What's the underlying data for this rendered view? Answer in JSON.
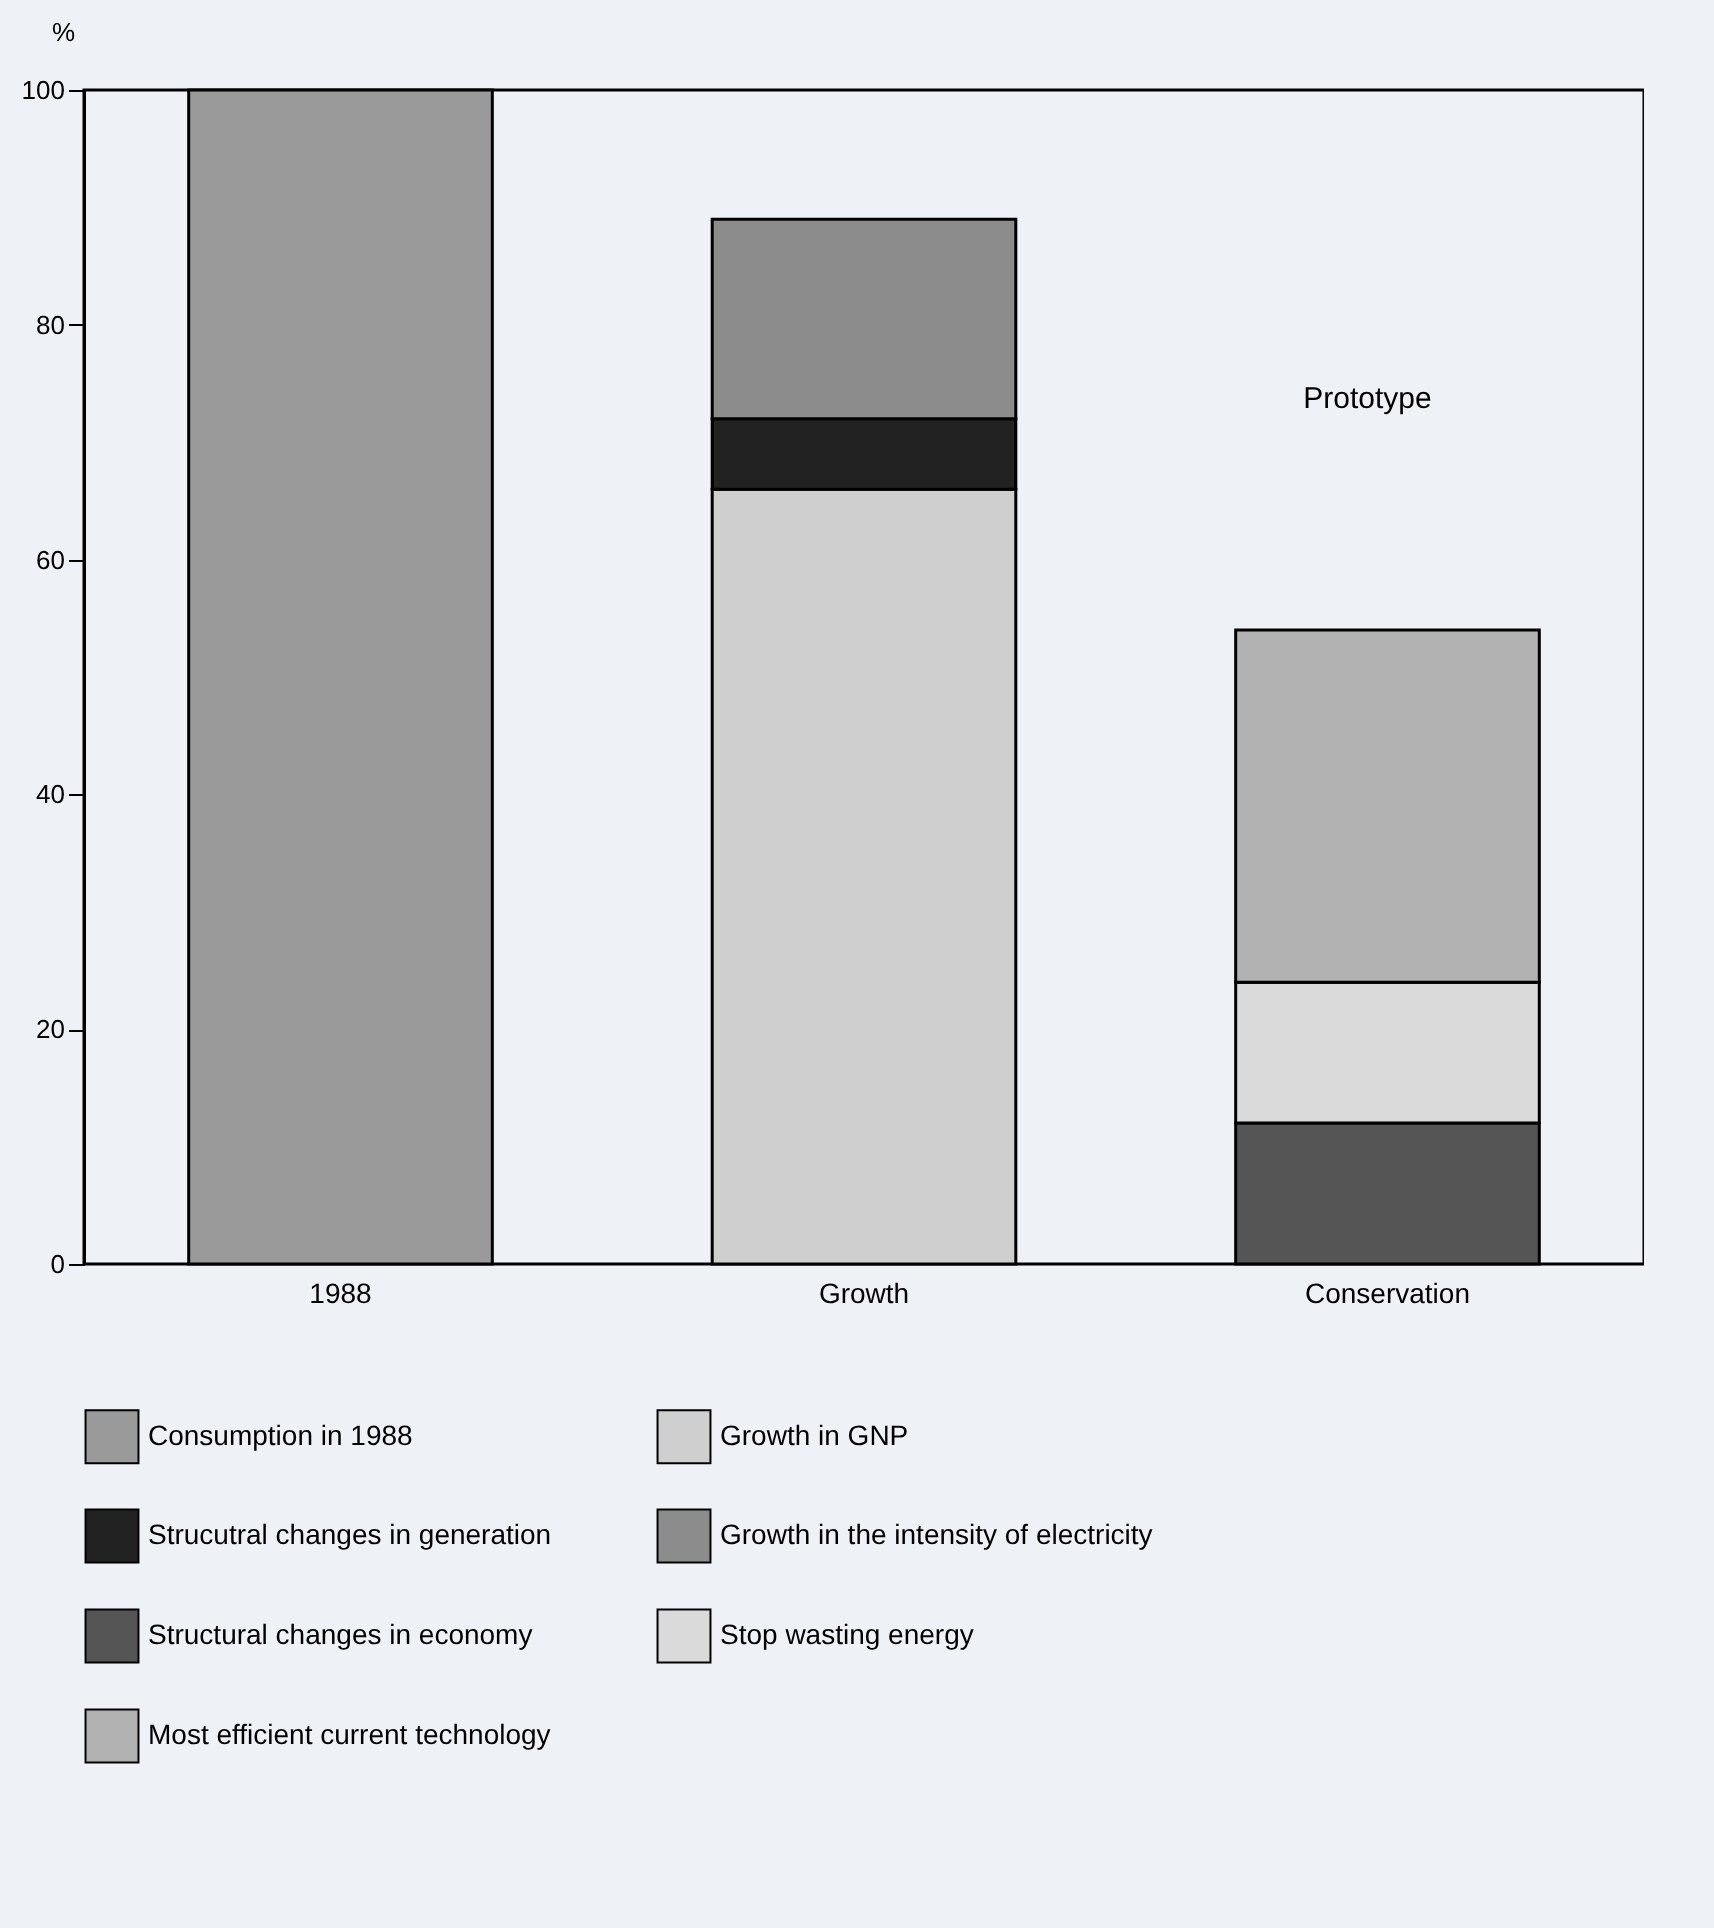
{
  "chart_data": {
    "type": "bar",
    "stacked": true,
    "ylabel": "%",
    "categories": [
      "1988",
      "Growth",
      "Conservation"
    ],
    "ylim": [
      0,
      100
    ],
    "yticks": [
      0,
      20,
      40,
      60,
      80,
      100
    ],
    "legend": "bottom",
    "series": [
      {
        "name": "Consumption in 1988",
        "color": "#9a9a9a",
        "values": [
          100,
          null,
          null
        ]
      },
      {
        "name": "Growth in GNP",
        "color": "#cfcfcf",
        "values": [
          null,
          66,
          null
        ]
      },
      {
        "name": "Strucutral changes in generation",
        "color": "#222222",
        "values": [
          null,
          6,
          null
        ]
      },
      {
        "name": "Growth in the intensity of electricity",
        "color": "#8c8c8c",
        "values": [
          null,
          17,
          null
        ]
      },
      {
        "name": "Structural changes in economy",
        "color": "#555555",
        "values": [
          null,
          null,
          12
        ]
      },
      {
        "name": "Stop wasting energy",
        "color": "#dadada",
        "values": [
          null,
          null,
          12
        ]
      },
      {
        "name": "Most efficient current technology",
        "color": "#b2b2b2",
        "values": [
          null,
          null,
          30
        ]
      }
    ],
    "annotations": [
      "Prototype"
    ]
  }
}
